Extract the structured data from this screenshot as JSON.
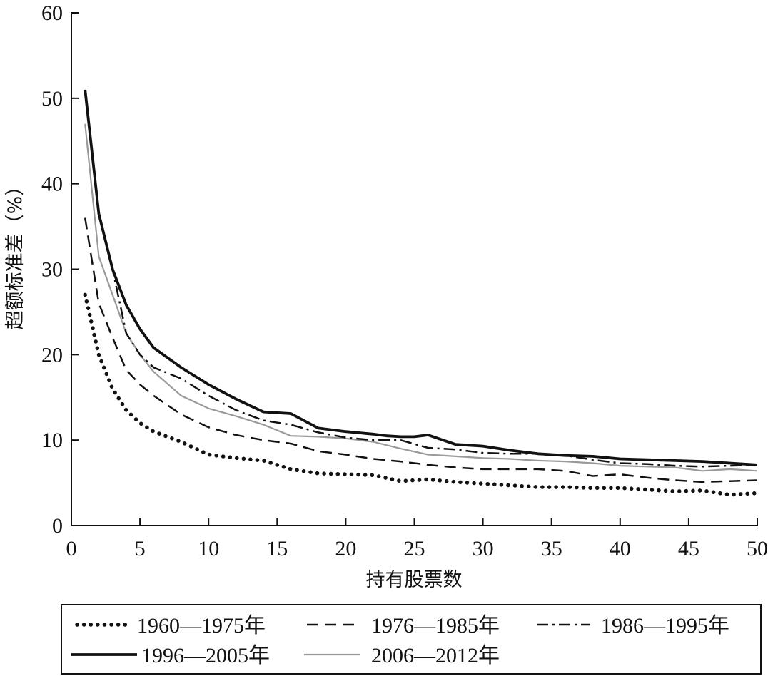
{
  "chart_data": {
    "type": "line",
    "title": "",
    "xlabel": "持有股票数",
    "ylabel": "超额标准差（%）",
    "xlim": [
      0,
      50
    ],
    "ylim": [
      0,
      60
    ],
    "xticks": [
      0,
      5,
      10,
      15,
      20,
      25,
      30,
      35,
      40,
      45,
      50
    ],
    "yticks": [
      0,
      10,
      20,
      30,
      40,
      50,
      60
    ],
    "grid": false,
    "legend_position": "bottom",
    "series": [
      {
        "name": "1960—1975年",
        "style": "dotted",
        "color": "#111111",
        "x": [
          1,
          2,
          3,
          4,
          5,
          6,
          8,
          10,
          12,
          14,
          16,
          18,
          20,
          22,
          24,
          26,
          28,
          30,
          32,
          34,
          36,
          38,
          40,
          42,
          44,
          46,
          48,
          50
        ],
        "y": [
          27,
          20,
          16,
          13.5,
          12,
          11,
          9.8,
          8.3,
          7.9,
          7.6,
          6.6,
          6.1,
          6.0,
          5.9,
          5.2,
          5.4,
          5.1,
          4.9,
          4.7,
          4.5,
          4.5,
          4.4,
          4.4,
          4.2,
          4.0,
          4.1,
          3.6,
          3.8
        ]
      },
      {
        "name": "1976—1985年",
        "style": "dashed",
        "color": "#111111",
        "x": [
          1,
          2,
          3,
          4,
          5,
          6,
          8,
          10,
          12,
          14,
          16,
          18,
          20,
          22,
          24,
          26,
          28,
          30,
          32,
          34,
          36,
          38,
          40,
          42,
          44,
          46,
          48,
          50
        ],
        "y": [
          36,
          26,
          22,
          18.2,
          16.5,
          15.2,
          13.0,
          11.5,
          10.6,
          10.0,
          9.6,
          8.7,
          8.3,
          7.8,
          7.5,
          7.1,
          6.8,
          6.6,
          6.6,
          6.6,
          6.4,
          5.8,
          6.0,
          5.6,
          5.3,
          5.1,
          5.2,
          5.3
        ]
      },
      {
        "name": "1986—1995年",
        "style": "dashdot",
        "color": "#111111",
        "x": [
          1,
          2,
          3,
          4,
          5,
          6,
          8,
          10,
          12,
          14,
          16,
          18,
          20,
          22,
          24,
          26,
          28,
          30,
          32,
          34,
          36,
          38,
          40,
          42,
          44,
          46,
          48,
          50
        ],
        "y": [
          51,
          36.5,
          30,
          22.5,
          20,
          18.5,
          17.2,
          15.2,
          13.5,
          12.3,
          11.8,
          10.9,
          10.3,
          10.0,
          10.0,
          9.1,
          8.9,
          8.5,
          8.4,
          8.4,
          8.2,
          7.7,
          7.3,
          7.2,
          7.0,
          6.9,
          7.0,
          7.1
        ]
      },
      {
        "name": "1996—2005年",
        "style": "solid-thick",
        "color": "#111111",
        "x": [
          1,
          2,
          3,
          4,
          5,
          6,
          8,
          10,
          12,
          14,
          16,
          18,
          20,
          22,
          23,
          24,
          25,
          26,
          28,
          30,
          32,
          34,
          36,
          38,
          40,
          42,
          44,
          46,
          48,
          50
        ],
        "y": [
          51,
          36.5,
          30,
          25.8,
          23,
          20.8,
          18.5,
          16.5,
          14.8,
          13.3,
          13.1,
          11.4,
          11.0,
          10.7,
          10.5,
          10.4,
          10.4,
          10.6,
          9.5,
          9.3,
          8.8,
          8.4,
          8.2,
          8.1,
          7.8,
          7.7,
          7.6,
          7.5,
          7.3,
          7.1
        ]
      },
      {
        "name": "2006—2012年",
        "style": "solid-gray",
        "color": "#9a9a9a",
        "x": [
          1,
          2,
          3,
          4,
          5,
          6,
          8,
          10,
          12,
          14,
          16,
          18,
          20,
          22,
          24,
          26,
          28,
          30,
          32,
          34,
          36,
          38,
          40,
          42,
          44,
          46,
          48,
          50
        ],
        "y": [
          47,
          31.5,
          27,
          22.5,
          20,
          18,
          15.2,
          13.7,
          12.8,
          11.8,
          10.5,
          10.4,
          10.2,
          9.8,
          9.0,
          8.3,
          8.1,
          7.9,
          7.8,
          7.6,
          7.5,
          7.3,
          7.0,
          6.9,
          6.8,
          6.4,
          6.6,
          6.4
        ]
      }
    ]
  }
}
